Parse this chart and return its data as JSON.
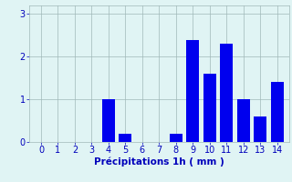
{
  "categories": [
    0,
    1,
    2,
    3,
    4,
    5,
    6,
    7,
    8,
    9,
    10,
    11,
    12,
    13,
    14
  ],
  "values": [
    0,
    0,
    0,
    0,
    1.0,
    0.2,
    0,
    0,
    0.2,
    2.4,
    1.6,
    2.3,
    1.0,
    0.6,
    1.4
  ],
  "bar_color": "#0000ee",
  "background_color": "#e0f4f4",
  "grid_color": "#a0b8b8",
  "xlabel": "Précipitations 1h ( mm )",
  "ylim": [
    0,
    3.2
  ],
  "yticks": [
    0,
    1,
    2,
    3
  ],
  "xlim": [
    -0.7,
    14.7
  ],
  "xlabel_fontsize": 7.5,
  "tick_fontsize": 7,
  "label_color": "#0000bb",
  "bar_width": 0.75
}
